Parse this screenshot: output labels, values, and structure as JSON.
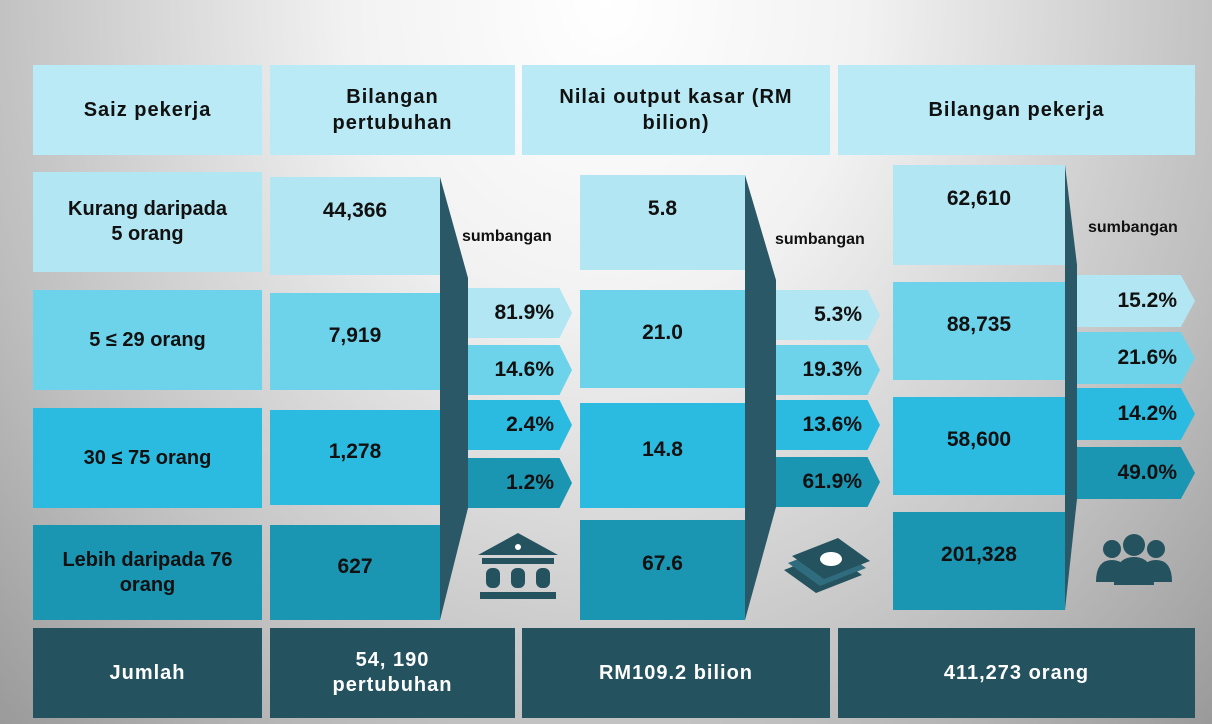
{
  "headers": [
    "Saiz pekerja",
    "Bilangan pertubuhan",
    "Nilai output kasar (RM bilion)",
    "Bilangan pekerja"
  ],
  "rows": [
    {
      "label": "Kurang daripada 5 orang",
      "establishments": "44,366",
      "output": "5.8",
      "workers": "62,610"
    },
    {
      "label": "5 ≤ 29 orang",
      "establishments": "7,919",
      "output": "21.0",
      "workers": "88,735"
    },
    {
      "label": "30 ≤ 75 orang",
      "establishments": "1,278",
      "output": "14.8",
      "workers": "58,600"
    },
    {
      "label": "Lebih daripada 76 orang",
      "establishments": "627",
      "output": "67.6",
      "workers": "201,328"
    }
  ],
  "contribution_label": "sumbangan",
  "contributions": {
    "establishments": [
      "81.9%",
      "14.6%",
      "2.4%",
      "1.2%"
    ],
    "output": [
      "5.3%",
      "19.3%",
      "13.6%",
      "61.9%"
    ],
    "workers": [
      "15.2%",
      "21.6%",
      "14.2%",
      "49.0%"
    ]
  },
  "totals": [
    "Jumlah",
    "54, 190 pertubuhan",
    "RM109.2 bilion",
    "411,273 orang"
  ]
}
